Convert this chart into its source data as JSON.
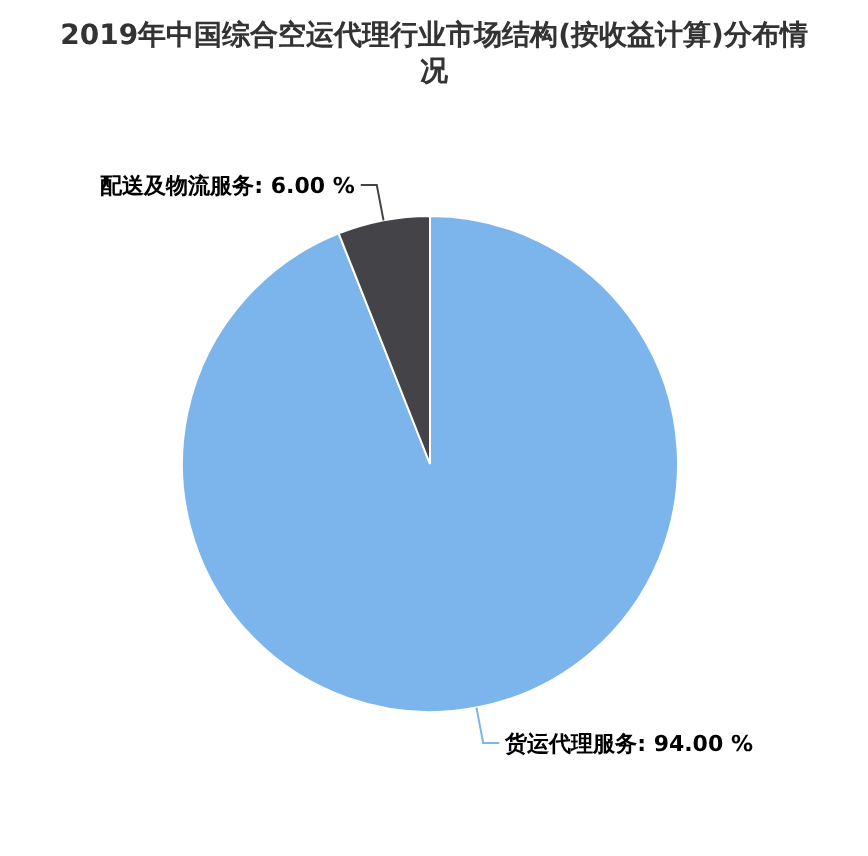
{
  "chart_data": {
    "type": "pie",
    "title": "2019年中国综合空运代理行业市场结构(按收益计算)分布情况",
    "categories": [
      "货运代理服务",
      "配送及物流服务"
    ],
    "values": [
      94,
      6
    ],
    "value_labels": [
      "94.00 %",
      "6.00 %"
    ],
    "colors": [
      "#7cb5ec",
      "#434348"
    ]
  }
}
